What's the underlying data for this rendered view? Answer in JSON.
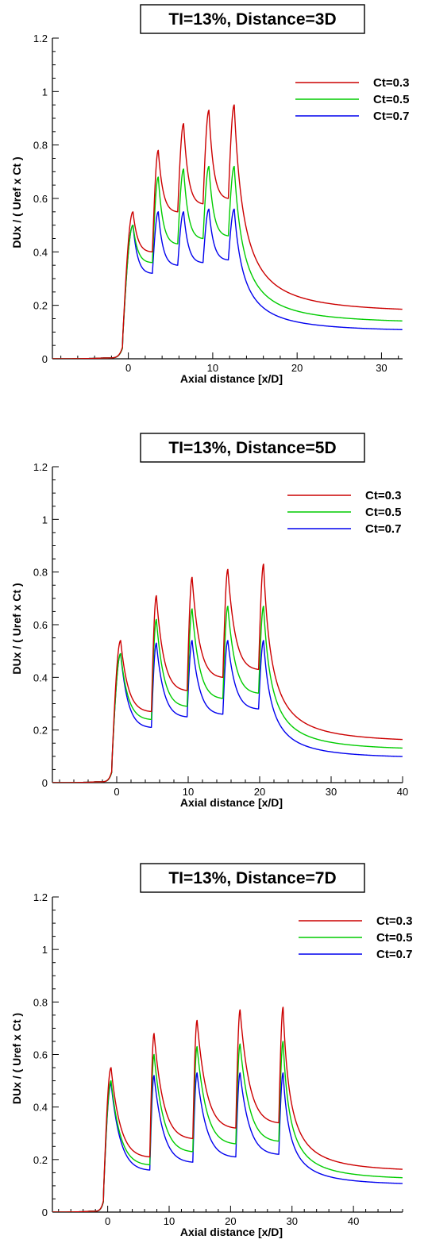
{
  "chart_data": [
    {
      "type": "line",
      "title": "TI=13%, Distance=3D",
      "xlabel": "Axial distance [x/D]",
      "ylabel": "DUx / ( Uref x Ct )",
      "xlim": [
        -9,
        32.5
      ],
      "ylim": [
        0,
        1.2
      ],
      "xticks": [
        0,
        10,
        20,
        30
      ],
      "yticks": [
        0,
        0.2,
        0.4,
        0.6,
        0.8,
        1,
        1.2
      ],
      "ytick_labels": [
        "0",
        "0.2",
        "0.4",
        "0.6",
        "0.8",
        "1",
        "1.2"
      ],
      "turbine_positions": [
        0,
        3,
        6,
        9,
        12
      ],
      "legend_position": "top-right",
      "series": [
        {
          "name": "Ct=0.3",
          "color": "#cc0000",
          "peaks": [
            0.55,
            0.78,
            0.88,
            0.93,
            0.95
          ],
          "troughs": [
            0.4,
            0.55,
            0.58,
            0.6
          ],
          "end_value": 0.17
        },
        {
          "name": "Ct=0.5",
          "color": "#00cc00",
          "peaks": [
            0.5,
            0.68,
            0.71,
            0.72,
            0.72
          ],
          "troughs": [
            0.36,
            0.43,
            0.45,
            0.46
          ],
          "end_value": 0.13
        },
        {
          "name": "Ct=0.7",
          "color": "#0000ee",
          "peaks": [
            0.5,
            0.55,
            0.55,
            0.56,
            0.56
          ],
          "troughs": [
            0.32,
            0.35,
            0.36,
            0.37
          ],
          "end_value": 0.1
        }
      ]
    },
    {
      "type": "line",
      "title": "TI=13%, Distance=5D",
      "xlabel": "Axial distance [x/D]",
      "ylabel": "DUx / ( Uref x Ct )",
      "xlim": [
        -9,
        40
      ],
      "ylim": [
        0,
        1.2
      ],
      "xticks": [
        0,
        10,
        20,
        30,
        40
      ],
      "yticks": [
        0,
        0.2,
        0.4,
        0.6,
        0.8,
        1,
        1.2
      ],
      "ytick_labels": [
        "0",
        "0.2",
        "0.4",
        "0.6",
        "0.8",
        "1",
        "1.2"
      ],
      "turbine_positions": [
        0,
        5,
        10,
        15,
        20
      ],
      "legend_position": "top-right",
      "series": [
        {
          "name": "Ct=0.3",
          "color": "#cc0000",
          "peaks": [
            0.54,
            0.71,
            0.78,
            0.81,
            0.83
          ],
          "troughs": [
            0.27,
            0.35,
            0.4,
            0.43
          ],
          "end_value": 0.15
        },
        {
          "name": "Ct=0.5",
          "color": "#00cc00",
          "peaks": [
            0.49,
            0.62,
            0.66,
            0.67,
            0.67
          ],
          "troughs": [
            0.24,
            0.29,
            0.32,
            0.34
          ],
          "end_value": 0.12
        },
        {
          "name": "Ct=0.7",
          "color": "#0000ee",
          "peaks": [
            0.49,
            0.53,
            0.54,
            0.54,
            0.54
          ],
          "troughs": [
            0.21,
            0.25,
            0.26,
            0.28
          ],
          "end_value": 0.09
        }
      ]
    },
    {
      "type": "line",
      "title": "TI=13%, Distance=7D",
      "xlabel": "Axial distance [x/D]",
      "ylabel": "DUx / ( Uref x Ct )",
      "xlim": [
        -9,
        48
      ],
      "ylim": [
        0,
        1.2
      ],
      "xticks": [
        0,
        10,
        20,
        30,
        40
      ],
      "yticks": [
        0,
        0.2,
        0.4,
        0.6,
        0.8,
        1,
        1.2
      ],
      "ytick_labels": [
        "0",
        "0.2",
        "0.4",
        "0.6",
        "0.8",
        "1",
        "1.2"
      ],
      "turbine_positions": [
        0,
        7,
        14,
        21,
        28
      ],
      "legend_position": "top-right",
      "series": [
        {
          "name": "Ct=0.3",
          "color": "#cc0000",
          "peaks": [
            0.55,
            0.68,
            0.73,
            0.77,
            0.78
          ],
          "troughs": [
            0.21,
            0.28,
            0.32,
            0.34
          ],
          "end_value": 0.15
        },
        {
          "name": "Ct=0.5",
          "color": "#00cc00",
          "peaks": [
            0.5,
            0.6,
            0.63,
            0.64,
            0.65
          ],
          "troughs": [
            0.18,
            0.23,
            0.26,
            0.27
          ],
          "end_value": 0.12
        },
        {
          "name": "Ct=0.7",
          "color": "#0000ee",
          "peaks": [
            0.49,
            0.52,
            0.53,
            0.53,
            0.53
          ],
          "troughs": [
            0.16,
            0.19,
            0.21,
            0.22
          ],
          "end_value": 0.1
        }
      ]
    }
  ]
}
